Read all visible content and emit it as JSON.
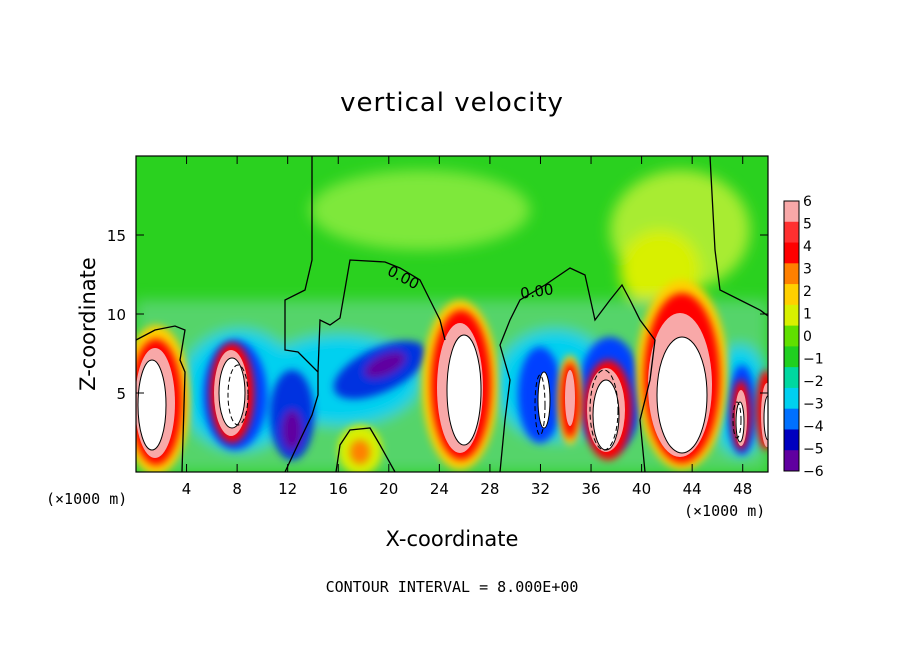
{
  "chart_data": {
    "type": "heatmap",
    "title": "vertical velocity",
    "xlabel": "X-coordinate",
    "ylabel": "Z-coordinate",
    "x_unit_label": "(×1000 m)",
    "xlim": [
      0,
      50
    ],
    "ylim": [
      0,
      20
    ],
    "x_ticks": [
      4,
      8,
      12,
      16,
      20,
      24,
      28,
      32,
      36,
      40,
      44,
      48
    ],
    "y_ticks": [
      5,
      10,
      15
    ],
    "colorbar": {
      "ticks": [
        6,
        5,
        4,
        3,
        2,
        1,
        0,
        -1,
        -2,
        -3,
        -4,
        -5,
        -6
      ],
      "range": [
        -6,
        6
      ],
      "colors": [
        "#f8a8a8",
        "#ff3030",
        "#ff0000",
        "#ff8000",
        "#ffd000",
        "#d8f000",
        "#60e000",
        "#20d020",
        "#00d8a0",
        "#00d0f0",
        "#0070ff",
        "#0000c0",
        "#6000a0"
      ]
    },
    "contour_labels": [
      "0.00",
      "0.00"
    ],
    "contour_interval_note": "CONTOUR INTERVAL = 8.000E+00",
    "cells": [
      {
        "x": 1,
        "z": 4.5,
        "w": 1.2,
        "h": 4.5,
        "value": 8
      },
      {
        "x": 7,
        "z": 4.0,
        "w": 1.2,
        "h": 4.0,
        "value": 8
      },
      {
        "x": 12,
        "z": 3.0,
        "w": 1.5,
        "h": 3.0,
        "value": -6
      },
      {
        "x": 18,
        "z": 6.2,
        "w": 2.5,
        "h": 1.2,
        "value": -6
      },
      {
        "x": 26,
        "z": 5.0,
        "w": 1.5,
        "h": 5.0,
        "value": 8
      },
      {
        "x": 34,
        "z": 4.5,
        "w": 0.6,
        "h": 2.5,
        "value": 6
      },
      {
        "x": 36.5,
        "z": 3.5,
        "w": 1.2,
        "h": 3.0,
        "value": 8
      },
      {
        "x": 43,
        "z": 5.0,
        "w": 2.0,
        "h": 4.0,
        "value": 8
      },
      {
        "x": 47,
        "z": 3.5,
        "w": 0.7,
        "h": 2.5,
        "value": 8
      },
      {
        "x": 49.5,
        "z": 3.5,
        "w": 0.5,
        "h": 2.5,
        "value": 8
      }
    ]
  }
}
